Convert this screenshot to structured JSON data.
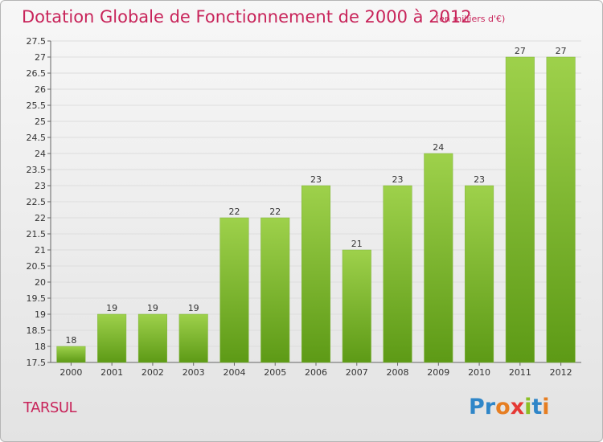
{
  "header": {
    "title": "Dotation Globale de Fonctionnement de 2000 à 2012",
    "subtitle": "(en milliers d'€)"
  },
  "footer": {
    "commune": "TARSUL",
    "logo": [
      "P",
      "r",
      "o",
      "x",
      "i",
      "t",
      "i"
    ],
    "logo_colors": [
      "#2f86c8",
      "#2f86c8",
      "#e67e22",
      "#e53935",
      "#8cbf26",
      "#2f86c8",
      "#e67e22"
    ]
  },
  "colors": {
    "title": "#c8245a",
    "bar_light": "#9ed14b",
    "bar_dark": "#5d9a16",
    "grid": "#dddddd"
  },
  "chart_data": {
    "type": "bar",
    "categories": [
      "2000",
      "2001",
      "2002",
      "2003",
      "2004",
      "2005",
      "2006",
      "2007",
      "2008",
      "2009",
      "2010",
      "2011",
      "2012"
    ],
    "values": [
      18,
      19,
      19,
      19,
      22,
      22,
      23,
      21,
      23,
      24,
      23,
      27,
      27
    ],
    "ylim": [
      17.5,
      27.5
    ],
    "ytick_step": 0.5,
    "yticks": [
      "17.5",
      "18",
      "18.5",
      "19",
      "19.5",
      "20",
      "20.5",
      "21",
      "21.5",
      "22",
      "22.5",
      "23",
      "23.5",
      "24",
      "24.5",
      "25",
      "25.5",
      "26",
      "26.5",
      "27",
      "27.5"
    ],
    "grid": true
  }
}
